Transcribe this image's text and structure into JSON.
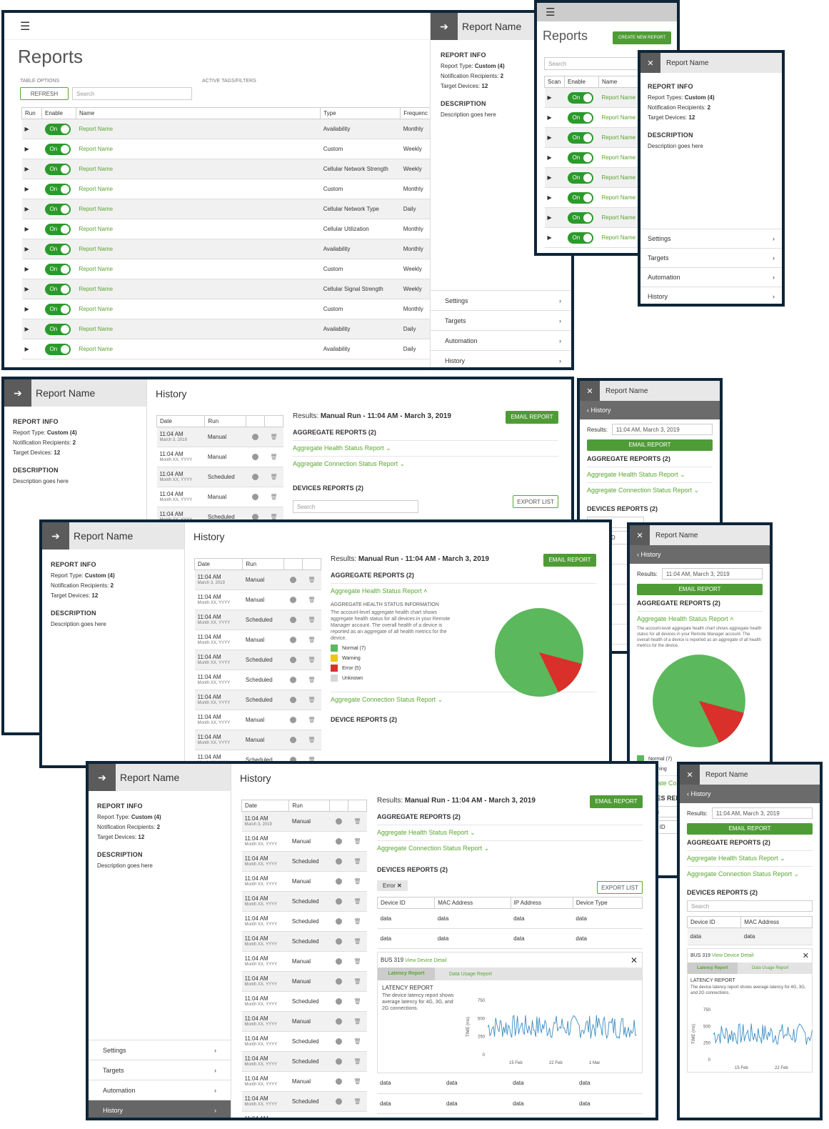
{
  "reports_page": {
    "title": "Reports",
    "table_options": "TABLE OPTIONS",
    "active_tags": "ACTIVE TAGS/FILTERS",
    "refresh": "REFRESH",
    "search": "Search",
    "columns": [
      "Run",
      "Enable",
      "Name",
      "Type",
      "Frequenc"
    ],
    "rows": [
      {
        "toggle": "On",
        "name": "Report Name",
        "type": "Availability",
        "freq": "Monthly"
      },
      {
        "toggle": "On",
        "name": "Report Name",
        "type": "Custom",
        "freq": "Weekly"
      },
      {
        "toggle": "On",
        "name": "Report Name",
        "type": "Cellular Network Strength",
        "freq": "Weekly"
      },
      {
        "toggle": "On",
        "name": "Report Name",
        "type": "Custom",
        "freq": "Monthly"
      },
      {
        "toggle": "On",
        "name": "Report Name",
        "type": "Cellular Network Type",
        "freq": "Daily"
      },
      {
        "toggle": "On",
        "name": "Report Name",
        "type": "Cellular Utilization",
        "freq": "Monthly"
      },
      {
        "toggle": "On",
        "name": "Report Name",
        "type": "Availability",
        "freq": "Monthly"
      },
      {
        "toggle": "On",
        "name": "Report Name",
        "type": "Custom",
        "freq": "Weekly"
      },
      {
        "toggle": "On",
        "name": "Report Name",
        "type": "Cellular Signal Strength",
        "freq": "Weekly"
      },
      {
        "toggle": "On",
        "name": "Report Name",
        "type": "Custom",
        "freq": "Monthly"
      },
      {
        "toggle": "On",
        "name": "Report Name",
        "type": "Availability",
        "freq": "Daily"
      },
      {
        "toggle": "On",
        "name": "Report Name",
        "type": "Availability",
        "freq": "Daily"
      }
    ]
  },
  "side_panel": {
    "title": "Report Name",
    "info_heading": "REPORT INFO",
    "type_label": "Report Type:",
    "type_value": "Custom (4)",
    "types_label": "Report Types:",
    "recip_label": "Notification Recipients:",
    "recip_value": "2",
    "targets_label": "Target Devices:",
    "targets_value": "12",
    "desc_heading": "DESCRIPTION",
    "desc_text": "Description goes here",
    "nav": [
      "Settings",
      "Targets",
      "Automation",
      "History"
    ]
  },
  "mobile_reports": {
    "title": "Reports",
    "create": "CREATE NEW REPORT",
    "search": "Search",
    "columns": [
      "Scan",
      "Enable",
      "Name"
    ],
    "toggle": "On",
    "name": "Report Name"
  },
  "history": {
    "title": "History",
    "cols": [
      "Date",
      "Run"
    ],
    "first_date": "11:04 AM",
    "first_sub": "March 3, 2019",
    "date": "11:04 AM",
    "date_sub": "Month XX, YYYY",
    "runs": [
      "Manual",
      "Manual",
      "Scheduled",
      "Manual",
      "Scheduled",
      "Scheduled",
      "Scheduled",
      "Manual",
      "Manual",
      "Scheduled",
      "Manual",
      "Scheduled",
      "Scheduled",
      "Manual",
      "Scheduled",
      "Manual"
    ],
    "results_label": "Results:",
    "results_value": "Manual Run - 11:04 AM - March 3, 2019",
    "email": "EMAIL REPORT",
    "aggregate": "AGGREGATE REPORTS (2)",
    "agg_health": "Aggregate Health Status Report",
    "agg_conn": "Aggregate Connection Status Report",
    "devices": "DEVICES REPORTS (2)",
    "device_reports": "DEVICE REPORTS (2)",
    "search": "Search",
    "export": "EXPORT LIST",
    "health_info_title": "AGGREGATE HEALTH STATUS INFORMATION",
    "health_info_text": "The account-level aggregate health chart shows aggregate health status for all devices in your Remote Manager account. The overall health of a device is reported as an aggregate of all health metrics for the device.",
    "legend": [
      {
        "label": "Normal (7)",
        "color": "#5cb85c"
      },
      {
        "label": "Warning",
        "color": "#f0c419"
      },
      {
        "label": "Error (5)",
        "color": "#d9302c"
      },
      {
        "label": "Unknown",
        "color": "#d6d6d6"
      }
    ],
    "filter_tag": "Error",
    "device_cols": [
      "Device ID",
      "MAC Address",
      "IP Address",
      "Device Type"
    ],
    "cell": "data",
    "bus": "BUS 319",
    "view_detail": "View Device Detail",
    "latency_tab": "Latency Report",
    "data_tab": "Data Usage Report",
    "latency_title": "LATENCY REPORT",
    "latency_text": "The device latency report shows average latency for 4G, 3G, and 2G connections.",
    "yaxis": "TIME (ms)",
    "yticks": [
      "750",
      "500",
      "250",
      "0"
    ],
    "xticks": [
      "15 Feb",
      "22 Feb",
      "1 Mar"
    ],
    "mobile_results_value": "11:04 AM, March 3, 2019",
    "back": "History",
    "normal7": "Normal (7)",
    "warning": "Warning"
  }
}
